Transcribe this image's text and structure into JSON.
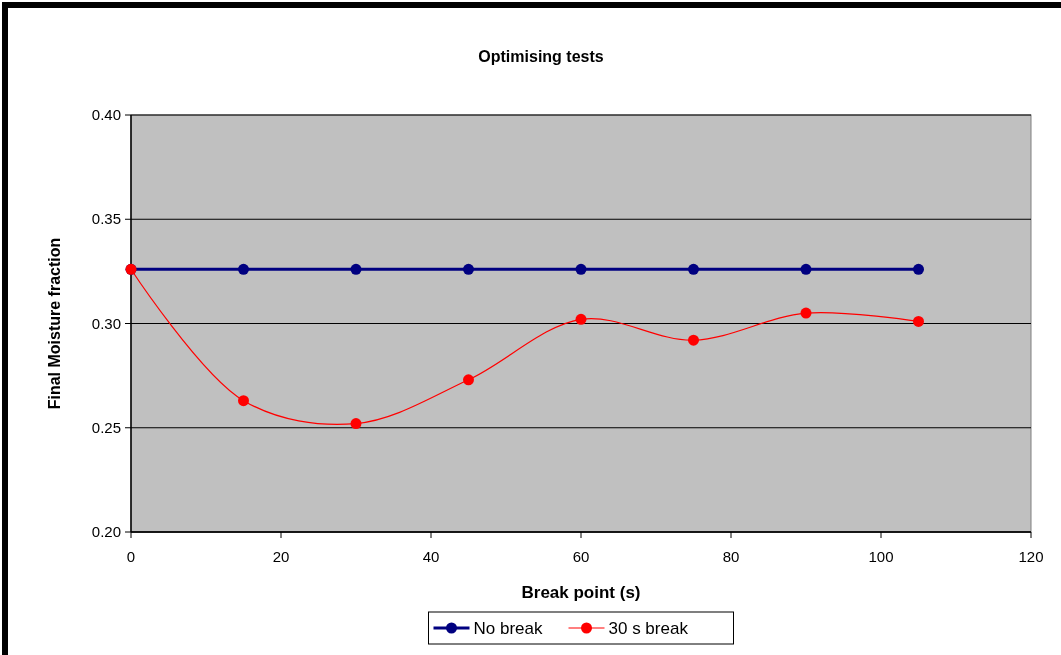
{
  "chart_data": {
    "type": "line",
    "title": "Optimising tests",
    "xlabel": "Break point (s)",
    "ylabel": "Final Moisture fraction",
    "x": [
      0,
      15,
      30,
      45,
      60,
      75,
      90,
      105
    ],
    "series": [
      {
        "name": "No break",
        "color": "#000080",
        "values": [
          0.326,
          0.326,
          0.326,
          0.326,
          0.326,
          0.326,
          0.326,
          0.326
        ]
      },
      {
        "name": "30 s break",
        "color": "#ff0000",
        "values": [
          0.326,
          0.263,
          0.252,
          0.273,
          0.302,
          0.292,
          0.305,
          0.301
        ]
      }
    ],
    "xlim": [
      0,
      120
    ],
    "xticks": [
      0,
      20,
      40,
      60,
      80,
      100,
      120
    ],
    "ylim": [
      0.2,
      0.4
    ],
    "yticks": [
      {
        "value": 0.2,
        "label": "0.20"
      },
      {
        "value": 0.25,
        "label": "0.25"
      },
      {
        "value": 0.3,
        "label": "0.30"
      },
      {
        "value": 0.35,
        "label": "0.35"
      },
      {
        "value": 0.4,
        "label": "0.40"
      }
    ],
    "grid": "y",
    "legend": "bottom",
    "marker": "circle",
    "line_style": "solid"
  }
}
